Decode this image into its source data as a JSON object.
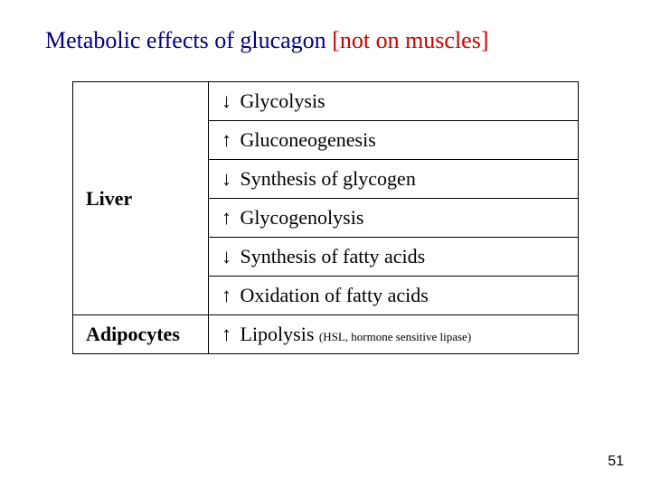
{
  "title": {
    "main": "Metabolic effects of glucagon ",
    "bracket": "[not on muscles]"
  },
  "table": {
    "liver_label": "Liver",
    "adipocytes_label": "Adipocytes",
    "rows": {
      "r1": {
        "arrow": "↓",
        "text": "Glycolysis"
      },
      "r2": {
        "arrow": "↑",
        "text": "Gluconeogenesis"
      },
      "r3": {
        "arrow": "↓",
        "text": "Synthesis of glycogen"
      },
      "r4": {
        "arrow": "↑",
        "text": "Glycogenolysis"
      },
      "r5": {
        "arrow": "↓",
        "text": "Synthesis of fatty acids"
      },
      "r6": {
        "arrow": "↑",
        "text": "Oxidation of fatty acids"
      },
      "r7": {
        "arrow": "↑",
        "text": "Lipolysis ",
        "sub": "(HSL, hormone sensitive lipase)"
      }
    }
  },
  "colors": {
    "title_main": "#000080",
    "title_bracket": "#cc0000",
    "text": "#000000",
    "border": "#000000",
    "background": "#ffffff"
  },
  "page_number": "51"
}
